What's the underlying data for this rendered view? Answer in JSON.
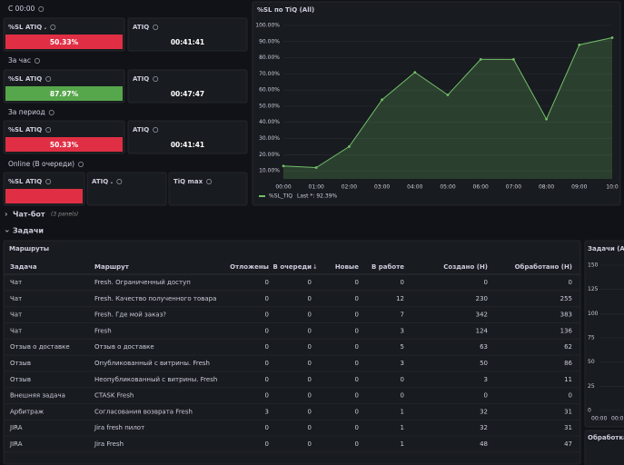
{
  "sections": [
    {
      "title": "С 00:00",
      "stats": [
        {
          "title": "%SL ATIQ .",
          "value": "50.33%",
          "color": "#e02f44"
        },
        {
          "title": "ATIQ",
          "value": "00:41:41"
        }
      ]
    },
    {
      "title": "За час",
      "stats": [
        {
          "title": "%SL ATIQ",
          "value": "87.97%",
          "color": "#56a64b"
        },
        {
          "title": "ATIQ",
          "value": "00:47:47"
        }
      ]
    },
    {
      "title": "За период",
      "stats": [
        {
          "title": "%SL ATIQ",
          "value": "50.33%",
          "color": "#e02f44"
        },
        {
          "title": "ATIQ",
          "value": "00:41:41"
        }
      ]
    },
    {
      "title": "Online (В очереди)",
      "stats": [
        {
          "title": "%SL ATIQ",
          "color": "#e02f44"
        },
        {
          "title": "ATIQ ."
        },
        {
          "title": "TiQ max"
        }
      ]
    }
  ],
  "chart": {
    "type": "line",
    "title": "%SL по TiQ (All)",
    "categories": [
      "00:00",
      "01:00",
      "02:00",
      "03:00",
      "04:00",
      "05:00",
      "06:00",
      "07:00",
      "08:00",
      "09:00",
      "10:0"
    ],
    "series": [
      {
        "name": "%SL_TIQ",
        "color": "#73bf69",
        "values": [
          13,
          12,
          25,
          54,
          71,
          57,
          79,
          79,
          42,
          88,
          92.39
        ]
      }
    ],
    "legend_stat": "Last *: 92.39%",
    "ylim": [
      5,
      100
    ],
    "yticks": [
      {
        "value": 10,
        "label": "10.00%"
      },
      {
        "value": 20,
        "label": "20.00%"
      },
      {
        "value": 30,
        "label": "30.00%"
      },
      {
        "value": 40,
        "label": "40.00%"
      },
      {
        "value": 50,
        "label": "50.00%"
      },
      {
        "value": 60,
        "label": "60.00%"
      },
      {
        "value": 70,
        "label": "70.00%"
      },
      {
        "value": 80,
        "label": "80.00%"
      },
      {
        "value": 90,
        "label": "90.00%"
      },
      {
        "value": 100,
        "label": "100.00%"
      }
    ],
    "grid": true
  },
  "rows": [
    {
      "title": "Чат-бот",
      "note": "(3 panels)"
    },
    {
      "title": "Задачи"
    }
  ],
  "table": {
    "title": "Маршруты",
    "columns": [
      "Задача",
      "Маршрут",
      "Отложены",
      "В очереди",
      "Новые",
      "В работе",
      "Создано (Н)",
      "Обработано (Н)"
    ],
    "rows": [
      [
        "Чат",
        "Fresh. Ограниченный доступ",
        0,
        0,
        0,
        0,
        0,
        0
      ],
      [
        "Чат",
        "Fresh. Качество полученного товара",
        0,
        0,
        0,
        12,
        230,
        255
      ],
      [
        "Чат",
        "Fresh. Где мой заказ?",
        0,
        0,
        0,
        7,
        342,
        383
      ],
      [
        "Чат",
        "Fresh",
        0,
        0,
        0,
        3,
        124,
        136
      ],
      [
        "Отзыв о доставке",
        "Отзыв о доставке",
        0,
        0,
        0,
        5,
        63,
        62
      ],
      [
        "Отзыв",
        "Опубликованный с витрины. Fresh",
        0,
        0,
        0,
        3,
        50,
        86
      ],
      [
        "Отзыв",
        "Неопубликованный с витрины. Fresh",
        0,
        0,
        0,
        0,
        3,
        11
      ],
      [
        "Внешняя задача",
        "CTASK Fresh",
        0,
        0,
        0,
        0,
        0,
        0
      ],
      [
        "Арбитраж",
        "Согласования возврата Fresh",
        3,
        0,
        0,
        1,
        32,
        31
      ],
      [
        "JIRA",
        "Jira fresh пилот",
        0,
        0,
        0,
        1,
        32,
        31
      ],
      [
        "JIRA",
        "Jira Fresh",
        0,
        0,
        0,
        1,
        48,
        47
      ]
    ]
  },
  "side_chart": {
    "title": "Задачи (All)",
    "ylim": [
      0,
      150
    ],
    "yticks": [
      0,
      25,
      50,
      75,
      100,
      125,
      150
    ],
    "x_labels": [
      "00:00",
      "00:0"
    ]
  },
  "side_panel": {
    "title": "Обработка"
  }
}
